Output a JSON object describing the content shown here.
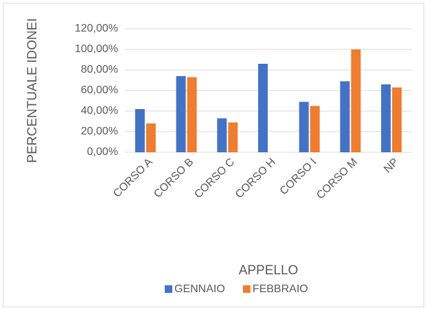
{
  "chart_data": {
    "type": "bar",
    "categories": [
      "CORSO A",
      "CORSO B",
      "CORSO C",
      "CORSO H",
      "CORSO I",
      "CORSO M",
      "NP"
    ],
    "series": [
      {
        "name": "GENNAIO",
        "color": "#4472c4",
        "values": [
          42,
          74,
          33,
          86,
          49,
          69,
          66
        ]
      },
      {
        "name": "FEBBRAIO",
        "color": "#ed7d31",
        "values": [
          28,
          73,
          29,
          null,
          45,
          100,
          63
        ]
      }
    ],
    "xlabel": "APPELLO",
    "ylabel": "PERCENTUALE IDONEI",
    "ylim": [
      0,
      120
    ],
    "yticks": [
      {
        "value": 0,
        "label": "0,00%"
      },
      {
        "value": 20,
        "label": "20,00%"
      },
      {
        "value": 40,
        "label": "40,00%"
      },
      {
        "value": 60,
        "label": "60,00%"
      },
      {
        "value": 80,
        "label": "80,00%"
      },
      {
        "value": 100,
        "label": "100,00%"
      },
      {
        "value": 120,
        "label": "120,00%"
      }
    ],
    "grid": true,
    "legend": "bottom"
  }
}
